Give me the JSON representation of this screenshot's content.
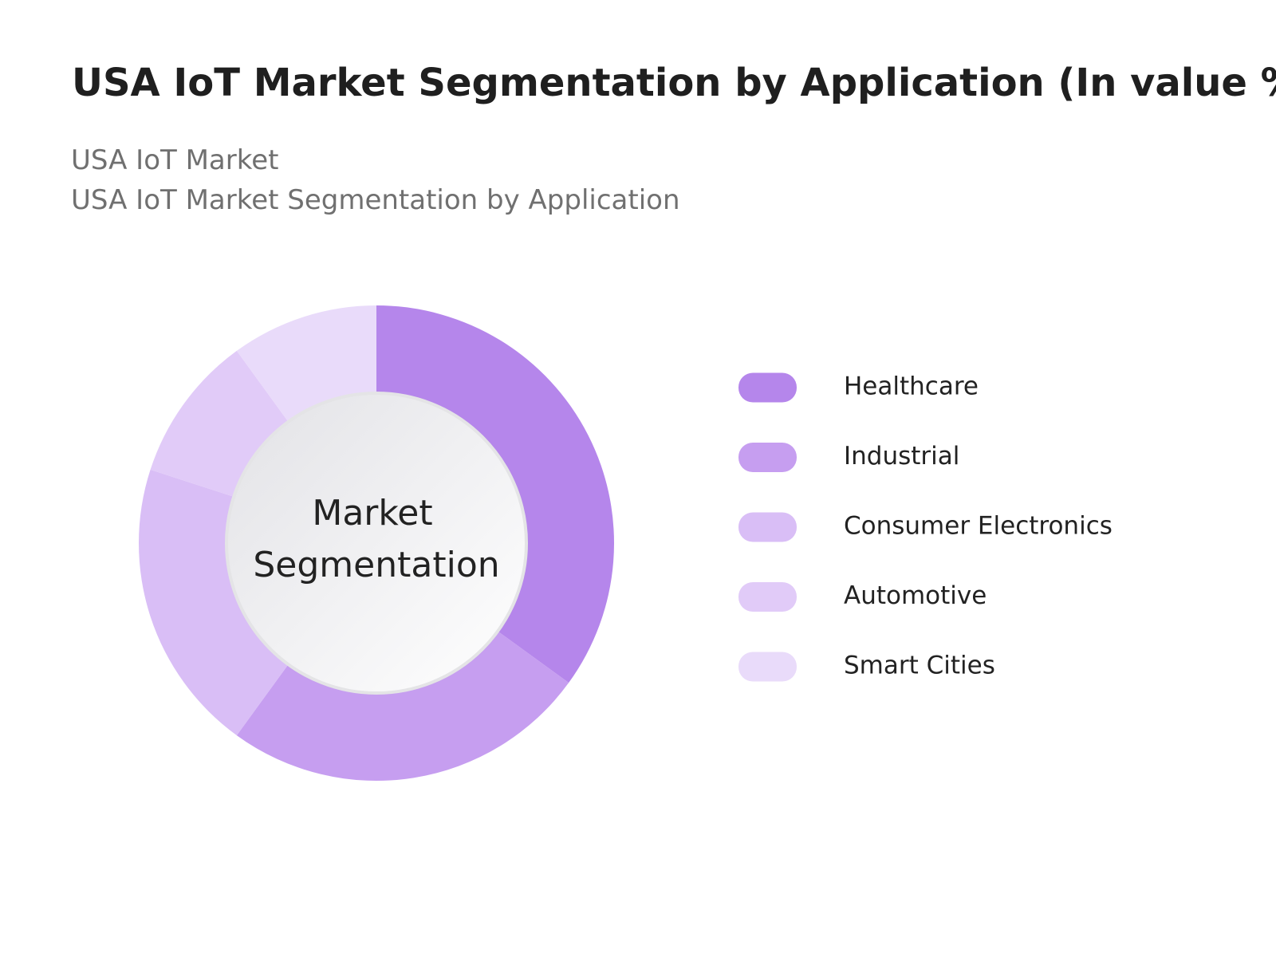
{
  "chart_data": {
    "type": "pie",
    "title": "USA IoT Market Segmentation by Application (In value %)",
    "subtitle": [
      "USA IoT Market",
      "USA IoT Market Segmentation by Application"
    ],
    "center_label": [
      "Market",
      "Segmentation"
    ],
    "categories": [
      "Healthcare",
      "Industrial",
      "Consumer Electronics",
      "Automotive",
      "Smart Cities"
    ],
    "values": [
      35,
      25,
      20,
      10,
      10
    ],
    "colors": [
      "#b586eb",
      "#c69ef0",
      "#d9bef6",
      "#e1cbf8",
      "#e9dbfa"
    ],
    "legend": "right"
  }
}
